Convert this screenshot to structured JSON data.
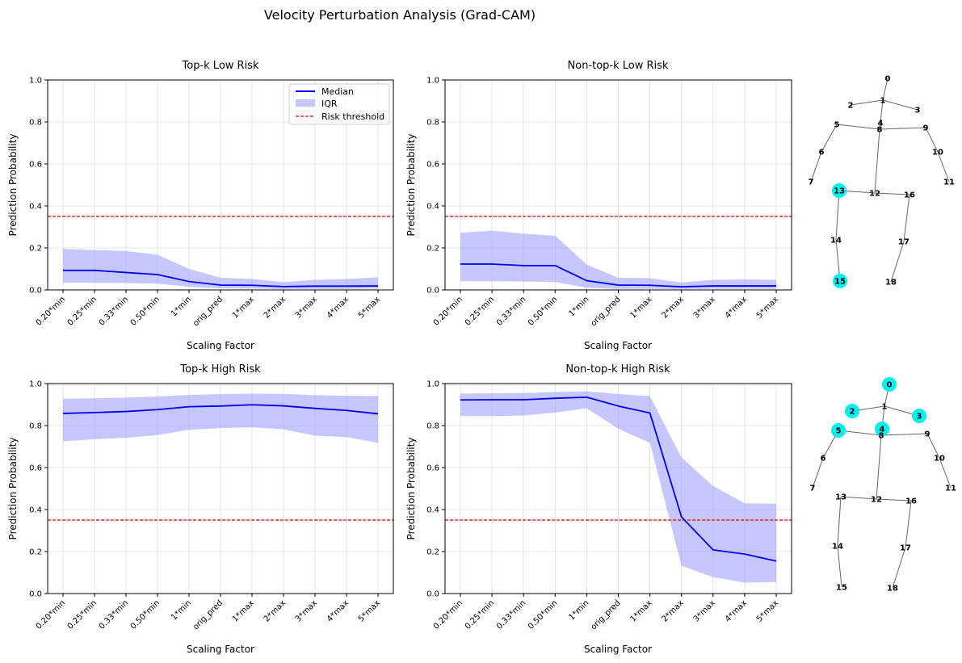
{
  "figure": {
    "suptitle": "Velocity Perturbation Analysis (Grad-CAM)"
  },
  "colors": {
    "median": "#0000ee",
    "iqr": "#9999ff",
    "threshold": "#ee0000",
    "grid": "#dddddd",
    "highlight": "#00f0f0",
    "bone": "#666666"
  },
  "chart_data": [
    {
      "type": "line",
      "title": "Top-k Low Risk",
      "xlabel": "Scaling Factor",
      "ylabel": "Prediction Probability",
      "ylim": [
        0,
        1
      ],
      "yticks": [
        "0.0",
        "0.2",
        "0.4",
        "0.6",
        "0.8",
        "1.0"
      ],
      "categories": [
        "0.20*min",
        "0.25*min",
        "0.33*min",
        "0.50*min",
        "1*min",
        "orig_pred",
        "1*max",
        "2*max",
        "3*max",
        "4*max",
        "5*max"
      ],
      "median": [
        0.093,
        0.093,
        0.083,
        0.073,
        0.04,
        0.023,
        0.022,
        0.016,
        0.018,
        0.018,
        0.019
      ],
      "iqr_low": [
        0.035,
        0.034,
        0.032,
        0.03,
        0.015,
        0.007,
        0.006,
        0.004,
        0.005,
        0.005,
        0.006
      ],
      "iqr_high": [
        0.195,
        0.19,
        0.185,
        0.168,
        0.1,
        0.058,
        0.052,
        0.037,
        0.048,
        0.052,
        0.06
      ],
      "threshold": 0.35,
      "legend": {
        "position": "top-right",
        "entries": [
          "Median",
          "IQR",
          "Risk threshold"
        ]
      }
    },
    {
      "type": "line",
      "title": "Non-top-k Low Risk",
      "xlabel": "Scaling Factor",
      "ylabel": "Prediction Probability",
      "ylim": [
        0,
        1
      ],
      "yticks": [
        "0.0",
        "0.2",
        "0.4",
        "0.6",
        "0.8",
        "1.0"
      ],
      "categories": [
        "0.20*min",
        "0.25*min",
        "0.33*min",
        "0.50*min",
        "1*min",
        "orig_pred",
        "1*max",
        "2*max",
        "3*max",
        "4*max",
        "5*max"
      ],
      "median": [
        0.123,
        0.123,
        0.116,
        0.116,
        0.044,
        0.023,
        0.022,
        0.015,
        0.019,
        0.019,
        0.019
      ],
      "iqr_low": [
        0.042,
        0.041,
        0.04,
        0.038,
        0.01,
        0.005,
        0.005,
        0.004,
        0.005,
        0.005,
        0.005
      ],
      "iqr_high": [
        0.272,
        0.282,
        0.268,
        0.258,
        0.12,
        0.058,
        0.056,
        0.035,
        0.048,
        0.05,
        0.048
      ],
      "threshold": 0.35
    },
    {
      "type": "line",
      "title": "Top-k High Risk",
      "xlabel": "Scaling Factor",
      "ylabel": "Prediction Probability",
      "ylim": [
        0,
        1
      ],
      "yticks": [
        "0.0",
        "0.2",
        "0.4",
        "0.6",
        "0.8",
        "1.0"
      ],
      "categories": [
        "0.20*min",
        "0.25*min",
        "0.33*min",
        "0.50*min",
        "1*min",
        "orig_pred",
        "1*max",
        "2*max",
        "3*max",
        "4*max",
        "5*max"
      ],
      "median": [
        0.858,
        0.862,
        0.867,
        0.876,
        0.89,
        0.893,
        0.899,
        0.894,
        0.882,
        0.872,
        0.856
      ],
      "iqr_low": [
        0.725,
        0.735,
        0.742,
        0.755,
        0.78,
        0.788,
        0.792,
        0.782,
        0.752,
        0.745,
        0.718
      ],
      "iqr_high": [
        0.928,
        0.93,
        0.933,
        0.938,
        0.946,
        0.95,
        0.952,
        0.951,
        0.945,
        0.942,
        0.941
      ],
      "threshold": 0.35
    },
    {
      "type": "line",
      "title": "Non-top-k High Risk",
      "xlabel": "Scaling Factor",
      "ylabel": "Prediction Probability",
      "ylim": [
        0,
        1
      ],
      "yticks": [
        "0.0",
        "0.2",
        "0.4",
        "0.6",
        "0.8",
        "1.0"
      ],
      "categories": [
        "0.20*min",
        "0.25*min",
        "0.33*min",
        "0.50*min",
        "1*min",
        "orig_pred",
        "1*max",
        "2*max",
        "3*max",
        "4*max",
        "5*max"
      ],
      "median": [
        0.922,
        0.923,
        0.923,
        0.93,
        0.935,
        0.893,
        0.86,
        0.365,
        0.208,
        0.188,
        0.155
      ],
      "iqr_low": [
        0.845,
        0.845,
        0.848,
        0.862,
        0.882,
        0.785,
        0.718,
        0.132,
        0.078,
        0.052,
        0.055
      ],
      "iqr_high": [
        0.953,
        0.954,
        0.955,
        0.96,
        0.963,
        0.95,
        0.94,
        0.648,
        0.512,
        0.43,
        0.428
      ],
      "threshold": 0.35
    }
  ],
  "skeletons": [
    {
      "name": "top-k-skeleton",
      "highlighted": [
        "13",
        "15"
      ]
    },
    {
      "name": "non-top-k-skeleton",
      "highlighted": [
        "0",
        "2",
        "3",
        "4",
        "5"
      ]
    }
  ]
}
